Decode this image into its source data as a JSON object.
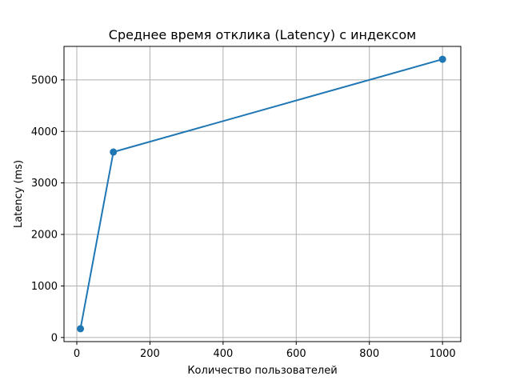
{
  "chart_data": {
    "type": "line",
    "title": "Среднее время отклика (Latency) с индексом",
    "xlabel": "Количество пользователей",
    "ylabel": "Latency (ms)",
    "xlim": [
      -35,
      1050
    ],
    "ylim": [
      -80,
      5650
    ],
    "xticks": [
      0,
      200,
      400,
      600,
      800,
      1000
    ],
    "yticks": [
      0,
      1000,
      2000,
      3000,
      4000,
      5000
    ],
    "grid": true,
    "series": [
      {
        "x": [
          10,
          100,
          1000
        ],
        "y": [
          170,
          3600,
          5400
        ],
        "color": "#1f77b4",
        "marker": "circle"
      }
    ]
  }
}
